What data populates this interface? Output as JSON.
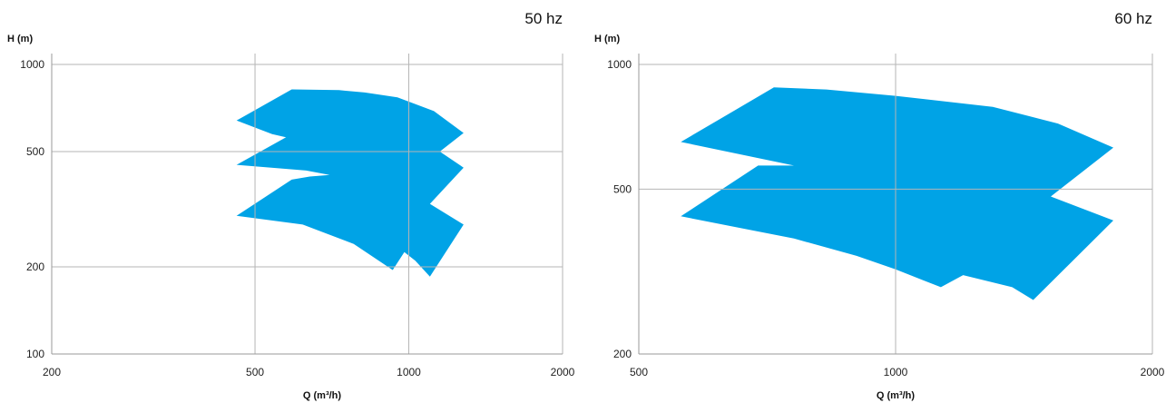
{
  "chart_data": [
    {
      "type": "area",
      "title": "50 hz",
      "xlabel": "Q (m³/h)",
      "ylabel": "H (m)",
      "x_scale": "log",
      "y_scale": "log",
      "xlim": [
        200,
        2000
      ],
      "ylim": [
        100,
        1000
      ],
      "x_ticks": [
        200,
        500,
        1000,
        2000
      ],
      "y_ticks": [
        100,
        200,
        500,
        1000
      ],
      "grid": true,
      "fill_color": "#00a3e6",
      "outline": [
        [
          460,
          640
        ],
        [
          590,
          820
        ],
        [
          730,
          815
        ],
        [
          820,
          800
        ],
        [
          950,
          770
        ],
        [
          1120,
          690
        ],
        [
          1280,
          580
        ],
        [
          1150,
          500
        ],
        [
          1280,
          440
        ],
        [
          1100,
          330
        ],
        [
          1280,
          280
        ],
        [
          1100,
          185
        ],
        [
          1030,
          210
        ],
        [
          980,
          225
        ],
        [
          930,
          195
        ],
        [
          780,
          240
        ],
        [
          620,
          280
        ],
        [
          460,
          300
        ],
        [
          590,
          400
        ],
        [
          640,
          410
        ],
        [
          700,
          415
        ],
        [
          630,
          430
        ],
        [
          460,
          450
        ],
        [
          575,
          560
        ],
        [
          540,
          575
        ]
      ]
    },
    {
      "type": "area",
      "title": "60 hz",
      "xlabel": "Q (m³/h)",
      "ylabel": "H (m)",
      "x_scale": "log",
      "y_scale": "log",
      "xlim": [
        500,
        2000
      ],
      "ylim": [
        200,
        1000
      ],
      "x_ticks": [
        500,
        1000,
        2000
      ],
      "y_ticks": [
        200,
        500,
        1000
      ],
      "grid": true,
      "fill_color": "#00a3e6",
      "outline": [
        [
          560,
          650
        ],
        [
          720,
          880
        ],
        [
          830,
          870
        ],
        [
          1000,
          840
        ],
        [
          1300,
          790
        ],
        [
          1550,
          720
        ],
        [
          1800,
          630
        ],
        [
          1520,
          480
        ],
        [
          1800,
          420
        ],
        [
          1450,
          270
        ],
        [
          1370,
          290
        ],
        [
          1200,
          310
        ],
        [
          1130,
          290
        ],
        [
          1000,
          320
        ],
        [
          900,
          345
        ],
        [
          760,
          380
        ],
        [
          560,
          430
        ],
        [
          690,
          570
        ],
        [
          760,
          570
        ]
      ]
    }
  ]
}
